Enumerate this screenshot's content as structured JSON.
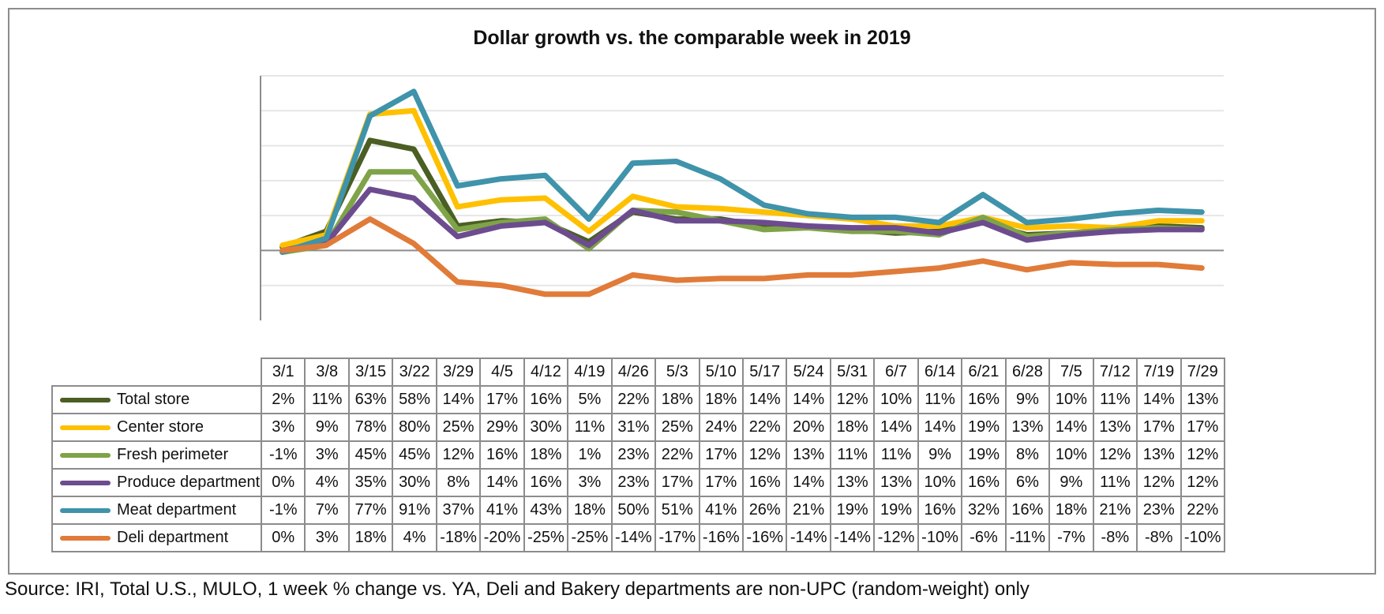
{
  "chart_data": {
    "type": "line",
    "title": "Dollar growth vs. the comparable week in 2019",
    "x": [
      "3/1",
      "3/8",
      "3/15",
      "3/22",
      "3/29",
      "4/5",
      "4/12",
      "4/19",
      "4/26",
      "5/3",
      "5/10",
      "5/17",
      "5/24",
      "5/31",
      "6/7",
      "6/14",
      "6/21",
      "6/28",
      "7/5",
      "7/12",
      "7/19",
      "7/29"
    ],
    "ylim": [
      -40,
      100
    ],
    "yticks": [
      -20,
      0,
      20,
      40,
      60,
      80,
      100
    ],
    "grid": true,
    "legend": "data table below chart",
    "series": [
      {
        "name": "Total store",
        "color": "#4b5e23",
        "values": [
          2,
          11,
          63,
          58,
          14,
          17,
          16,
          5,
          22,
          18,
          18,
          14,
          14,
          12,
          10,
          11,
          16,
          9,
          10,
          11,
          14,
          13
        ],
        "labels": [
          "2%",
          "11%",
          "63%",
          "58%",
          "14%",
          "17%",
          "16%",
          "5%",
          "22%",
          "18%",
          "18%",
          "14%",
          "14%",
          "12%",
          "10%",
          "11%",
          "16%",
          "9%",
          "10%",
          "11%",
          "14%",
          "13%"
        ]
      },
      {
        "name": "Center store",
        "color": "#ffc000",
        "values": [
          3,
          9,
          78,
          80,
          25,
          29,
          30,
          11,
          31,
          25,
          24,
          22,
          20,
          18,
          14,
          14,
          19,
          13,
          14,
          13,
          17,
          17
        ],
        "labels": [
          "3%",
          "9%",
          "78%",
          "80%",
          "25%",
          "29%",
          "30%",
          "11%",
          "31%",
          "25%",
          "24%",
          "22%",
          "20%",
          "18%",
          "14%",
          "14%",
          "19%",
          "13%",
          "14%",
          "13%",
          "17%",
          "17%"
        ]
      },
      {
        "name": "Fresh perimeter",
        "color": "#7fa348",
        "values": [
          -1,
          3,
          45,
          45,
          12,
          16,
          18,
          1,
          23,
          22,
          17,
          12,
          13,
          11,
          11,
          9,
          19,
          8,
          10,
          12,
          13,
          12
        ],
        "labels": [
          "-1%",
          "3%",
          "45%",
          "45%",
          "12%",
          "16%",
          "18%",
          "1%",
          "23%",
          "22%",
          "17%",
          "12%",
          "13%",
          "11%",
          "11%",
          "9%",
          "19%",
          "8%",
          "10%",
          "12%",
          "13%",
          "12%"
        ]
      },
      {
        "name": "Produce department",
        "color": "#6c4c8f",
        "values": [
          0,
          4,
          35,
          30,
          8,
          14,
          16,
          3,
          23,
          17,
          17,
          16,
          14,
          13,
          13,
          10,
          16,
          6,
          9,
          11,
          12,
          12
        ],
        "labels": [
          "0%",
          "4%",
          "35%",
          "30%",
          "8%",
          "14%",
          "16%",
          "3%",
          "23%",
          "17%",
          "17%",
          "16%",
          "14%",
          "13%",
          "13%",
          "10%",
          "16%",
          "6%",
          "9%",
          "11%",
          "12%",
          "12%"
        ]
      },
      {
        "name": "Meat department",
        "color": "#3f93aa",
        "values": [
          -1,
          7,
          77,
          91,
          37,
          41,
          43,
          18,
          50,
          51,
          41,
          26,
          21,
          19,
          19,
          16,
          32,
          16,
          18,
          21,
          23,
          22
        ],
        "labels": [
          "-1%",
          "7%",
          "77%",
          "91%",
          "37%",
          "41%",
          "43%",
          "18%",
          "50%",
          "51%",
          "41%",
          "26%",
          "21%",
          "19%",
          "19%",
          "16%",
          "32%",
          "16%",
          "18%",
          "21%",
          "23%",
          "22%"
        ]
      },
      {
        "name": "Deli department",
        "color": "#e07b39",
        "values": [
          0,
          3,
          18,
          4,
          -18,
          -20,
          -25,
          -25,
          -14,
          -17,
          -16,
          -16,
          -14,
          -14,
          -12,
          -10,
          -6,
          -11,
          -7,
          -8,
          -8,
          -10
        ],
        "labels": [
          "0%",
          "3%",
          "18%",
          "4%",
          "-18%",
          "-20%",
          "-25%",
          "-25%",
          "-14%",
          "-17%",
          "-16%",
          "-16%",
          "-14%",
          "-14%",
          "-12%",
          "-10%",
          "-6%",
          "-11%",
          "-7%",
          "-8%",
          "-8%",
          "-10%"
        ]
      }
    ]
  },
  "source_note": "Source: IRI, Total U.S., MULO, 1 week % change vs. YA, Deli and Bakery departments are non-UPC (random-weight) only"
}
